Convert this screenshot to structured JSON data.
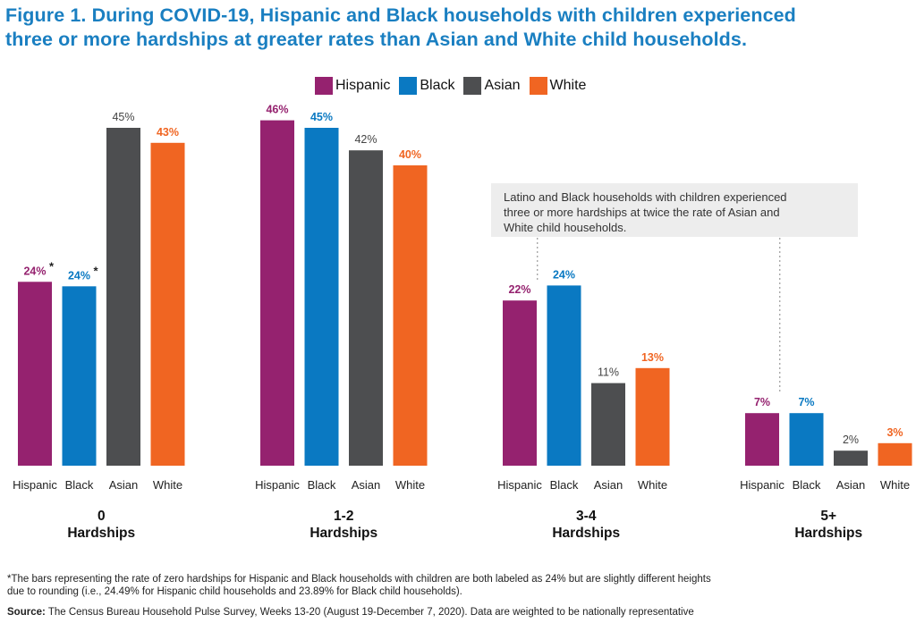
{
  "title": {
    "line1": "Figure 1. During COVID-19, Hispanic and Black households with children experienced",
    "line2": "three or more hardships at greater rates than Asian and White child households."
  },
  "colors": {
    "Hispanic": "#95226f",
    "Black": "#0a79c2",
    "Asian": "#4d4e50",
    "White": "#f06522"
  },
  "chart_data": {
    "type": "bar",
    "categories": [
      "0 Hardships",
      "1-2 Hardships",
      "3-4 Hardships",
      "5+ Hardships"
    ],
    "group_labels": [
      [
        "0",
        "Hardships"
      ],
      [
        "1-2",
        "Hardships"
      ],
      [
        "3-4",
        "Hardships"
      ],
      [
        "5+",
        "Hardships"
      ]
    ],
    "series": [
      {
        "name": "Hispanic",
        "values": [
          24.49,
          46,
          22,
          7
        ],
        "labels": [
          "24%*",
          "46%",
          "22%",
          "7%"
        ]
      },
      {
        "name": "Black",
        "values": [
          23.89,
          45,
          24,
          7
        ],
        "labels": [
          "24%*",
          "45%",
          "24%",
          "7%"
        ]
      },
      {
        "name": "Asian",
        "values": [
          45,
          42,
          11,
          2
        ],
        "labels": [
          "45%",
          "42%",
          "11%",
          "2%"
        ]
      },
      {
        "name": "White",
        "values": [
          43,
          40,
          13,
          3
        ],
        "labels": [
          "43%",
          "40%",
          "13%",
          "3%"
        ]
      }
    ],
    "ylim": [
      0,
      50
    ],
    "grid": false,
    "legend_position": "top-center",
    "annotation": {
      "lines": [
        "Latino and Black households with children experienced",
        "three or more hardships at twice the rate of Asian and",
        "White child households."
      ]
    }
  },
  "footnote": {
    "line1": "*The bars representing the rate of zero hardships for Hispanic and Black households with children are both labeled as 24% but are slightly different heights",
    "line2": "due to rounding (i.e., 24.49% for Hispanic child households and 23.89% for Black child households)."
  },
  "source": {
    "label": "Source:",
    "text": "The Census Bureau Household Pulse Survey, Weeks 13-20 (August 19-December 7, 2020). Data are weighted to be nationally representative"
  }
}
